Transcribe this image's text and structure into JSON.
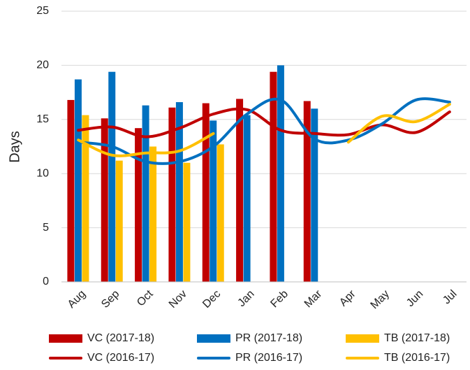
{
  "chart_data": {
    "type": "bar",
    "y_label": "Days",
    "categories": [
      "Aug",
      "Sep",
      "Oct",
      "Nov",
      "Dec",
      "Jan",
      "Feb",
      "Mar",
      "Apr",
      "May",
      "Jun",
      "Jul"
    ],
    "ylim": [
      0,
      25
    ],
    "yticks": [
      0,
      5,
      10,
      15,
      20,
      25
    ],
    "grid": true,
    "legend": "bottom",
    "series": [
      {
        "name": "VC (2017-18)",
        "type": "bar",
        "color": "#c00000",
        "values": [
          16.8,
          15.1,
          14.2,
          16.1,
          16.5,
          16.9,
          19.4,
          16.7,
          null,
          null,
          null,
          null
        ]
      },
      {
        "name": "PR (2017-18)",
        "type": "bar",
        "color": "#0070c0",
        "values": [
          18.7,
          19.4,
          16.3,
          16.6,
          14.9,
          15.4,
          20.0,
          16.0,
          null,
          null,
          null,
          null
        ]
      },
      {
        "name": "TB (2017-18)",
        "type": "bar",
        "color": "#ffc000",
        "values": [
          15.4,
          11.2,
          12.5,
          11.0,
          12.7,
          null,
          null,
          null,
          null,
          null,
          null,
          null
        ]
      },
      {
        "name": "VC (2016-17)",
        "type": "line",
        "color": "#c00000",
        "values": [
          14.0,
          14.3,
          13.4,
          14.2,
          15.5,
          15.9,
          14.0,
          13.7,
          13.6,
          14.5,
          13.8,
          15.7
        ]
      },
      {
        "name": "PR (2016-17)",
        "type": "line",
        "color": "#0070c0",
        "values": [
          12.9,
          12.5,
          11.1,
          11.1,
          12.5,
          15.5,
          16.8,
          13.2,
          13.1,
          14.6,
          16.8,
          16.6
        ]
      },
      {
        "name": "TB (2016-17)",
        "type": "line",
        "color": "#ffc000",
        "values": [
          13.1,
          11.7,
          11.9,
          12.1,
          13.7,
          null,
          null,
          null,
          12.9,
          15.3,
          14.8,
          16.4
        ]
      }
    ]
  }
}
